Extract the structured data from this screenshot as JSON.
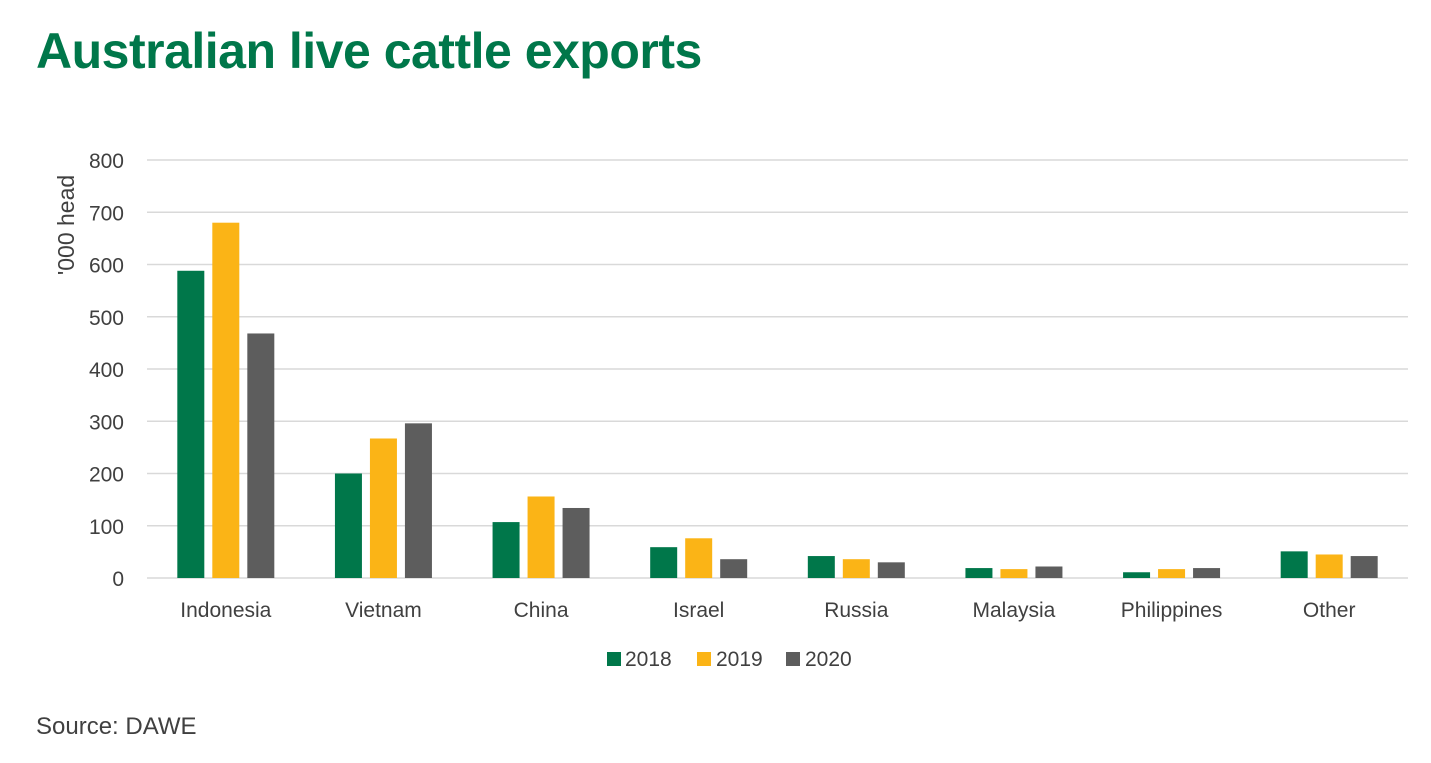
{
  "title": "Australian live cattle exports",
  "source": "Source: DAWE",
  "colors": {
    "2018": "#00774a",
    "2019": "#fbb416",
    "2020": "#5d5d5d",
    "title": "#00774a",
    "gridline": "#d9d9d9",
    "text": "#404040"
  },
  "chart_data": {
    "type": "bar",
    "ylabel": "'000 head",
    "ylim": [
      0,
      800
    ],
    "yticks": [
      0,
      100,
      200,
      300,
      400,
      500,
      600,
      700,
      800
    ],
    "grid": true,
    "legend_position": "bottom",
    "categories": [
      "Indonesia",
      "Vietnam",
      "China",
      "Israel",
      "Russia",
      "Malaysia",
      "Philippines",
      "Other"
    ],
    "series": [
      {
        "name": "2018",
        "color": "#00774a",
        "values": [
          588,
          200,
          107,
          59,
          42,
          19,
          11,
          51
        ]
      },
      {
        "name": "2019",
        "color": "#fbb416",
        "values": [
          680,
          267,
          156,
          76,
          36,
          17,
          17,
          45
        ]
      },
      {
        "name": "2020",
        "color": "#5d5d5d",
        "values": [
          468,
          296,
          134,
          36,
          30,
          22,
          19,
          42
        ]
      }
    ]
  }
}
